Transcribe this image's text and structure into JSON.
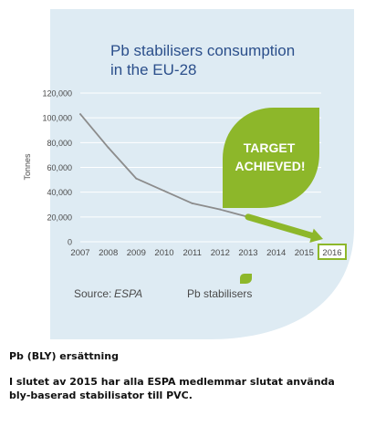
{
  "chart_data": {
    "type": "line",
    "title_lines": [
      "Pb stabilisers consumption",
      "in the EU-28"
    ],
    "ylabel": "Tonnes",
    "xlabel": "",
    "categories": [
      "2007",
      "2008",
      "2009",
      "2010",
      "2011",
      "2012",
      "2013",
      "2014",
      "2015",
      "2016"
    ],
    "y_ticks": [
      "120,000",
      "100,000",
      "80,000",
      "60,000",
      "40,000",
      "20,000",
      "0"
    ],
    "ylim": [
      0,
      120000
    ],
    "series": [
      {
        "name": "Pb stabilisers",
        "x": [
          "2007",
          "2008",
          "2009",
          "2010",
          "2011",
          "2012",
          "2013"
        ],
        "values": [
          103000,
          76000,
          51000,
          41000,
          31000,
          26000,
          20000
        ]
      }
    ],
    "projection": {
      "x": [
        "2013",
        "2016"
      ],
      "values": [
        20000,
        0
      ]
    },
    "highlighted_category": "2016",
    "badge_lines": [
      "TARGET",
      "ACHIEVED!"
    ],
    "source_label": "Source:",
    "source_value": "ESPA",
    "legend_label": "Pb stabilisers",
    "grid": true,
    "colors": {
      "background_shape": "#deebf3",
      "title": "#2b4f8b",
      "axis_text": "#4a4a4a",
      "grid": "#ffffff",
      "line": "#8c8c8c",
      "accent": "#8db72a",
      "badge_text": "#ffffff"
    }
  },
  "caption": {
    "heading": "Pb (BLY) ersättning",
    "text": "I slutet av 2015 har alla ESPA medlemmar slutat använda bly-baserad stabilisator till PVC."
  }
}
